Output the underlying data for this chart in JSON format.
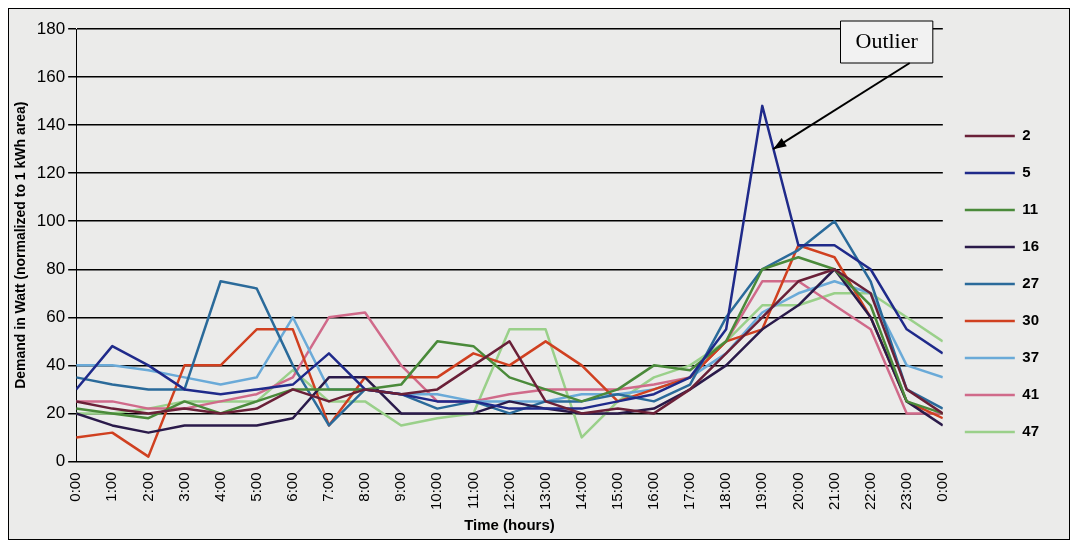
{
  "chart_data": {
    "type": "line",
    "xlabel": "Time (hours)",
    "ylabel": "Demand in Watt (normalized to 1 kWh area)",
    "xlim": [
      0,
      24
    ],
    "xticks": [
      {
        "value": 0,
        "label": "0:00"
      },
      {
        "value": 1,
        "label": "1:00"
      },
      {
        "value": 2,
        "label": "2:00"
      },
      {
        "value": 3,
        "label": "3:00"
      },
      {
        "value": 4,
        "label": "4:00"
      },
      {
        "value": 5,
        "label": "5:00"
      },
      {
        "value": 6,
        "label": "6:00"
      },
      {
        "value": 7,
        "label": "7:00"
      },
      {
        "value": 8,
        "label": "8:00"
      },
      {
        "value": 9,
        "label": "9:00"
      },
      {
        "value": 10,
        "label": "10:00"
      },
      {
        "value": 11,
        "label": "11:00"
      },
      {
        "value": 12,
        "label": "12:00"
      },
      {
        "value": 13,
        "label": "13:00"
      },
      {
        "value": 14,
        "label": "14:00"
      },
      {
        "value": 15,
        "label": "15:00"
      },
      {
        "value": 16,
        "label": "16:00"
      },
      {
        "value": 17,
        "label": "17:00"
      },
      {
        "value": 18,
        "label": "18:00"
      },
      {
        "value": 19,
        "label": "19:00"
      },
      {
        "value": 20,
        "label": "20:00"
      },
      {
        "value": 21,
        "label": "21:00"
      },
      {
        "value": 22,
        "label": "22:00"
      },
      {
        "value": 23,
        "label": "23:00"
      },
      {
        "value": 24,
        "label": "0:00"
      }
    ],
    "ylim": [
      0,
      180
    ],
    "yticks": [
      0,
      20,
      40,
      60,
      80,
      100,
      120,
      140,
      160,
      180
    ],
    "grid": "y",
    "legend": "right",
    "marker": "none",
    "line_style": "solid",
    "x": [
      0,
      1,
      2,
      3,
      4,
      5,
      6,
      7,
      8,
      9,
      10,
      11,
      12,
      13,
      14,
      15,
      16,
      17,
      18,
      19,
      20,
      21,
      22,
      23,
      24
    ],
    "series": [
      {
        "name": "2",
        "color": "#6a2038",
        "values": [
          25,
          22,
          20,
          22,
          20,
          22,
          30,
          25,
          30,
          28,
          30,
          40,
          50,
          25,
          20,
          22,
          20,
          30,
          45,
          60,
          75,
          80,
          70,
          30,
          20
        ]
      },
      {
        "name": "5",
        "color": "#1f2a8a",
        "values": [
          30,
          48,
          40,
          30,
          28,
          30,
          32,
          45,
          30,
          28,
          25,
          25,
          22,
          22,
          22,
          25,
          28,
          35,
          55,
          148,
          90,
          90,
          80,
          55,
          45
        ]
      },
      {
        "name": "11",
        "color": "#4a8a3a",
        "values": [
          22,
          20,
          18,
          25,
          20,
          25,
          30,
          30,
          30,
          32,
          50,
          48,
          35,
          30,
          25,
          30,
          40,
          38,
          50,
          80,
          85,
          80,
          65,
          25,
          20
        ]
      },
      {
        "name": "16",
        "color": "#2a1a4a",
        "values": [
          20,
          15,
          12,
          15,
          15,
          15,
          18,
          35,
          35,
          20,
          20,
          20,
          25,
          22,
          20,
          20,
          22,
          30,
          40,
          55,
          65,
          80,
          60,
          25,
          15
        ]
      },
      {
        "name": "27",
        "color": "#2a6a9a",
        "values": [
          35,
          32,
          30,
          30,
          75,
          72,
          40,
          15,
          30,
          28,
          22,
          25,
          20,
          25,
          25,
          28,
          25,
          32,
          60,
          80,
          88,
          100,
          75,
          30,
          22
        ]
      },
      {
        "name": "30",
        "color": "#d04020",
        "values": [
          10,
          12,
          2,
          40,
          40,
          55,
          55,
          15,
          35,
          35,
          35,
          45,
          40,
          50,
          40,
          25,
          30,
          35,
          50,
          55,
          90,
          85,
          60,
          25,
          18
        ]
      },
      {
        "name": "37",
        "color": "#6aaad8",
        "values": [
          40,
          40,
          38,
          35,
          32,
          35,
          60,
          30,
          30,
          28,
          28,
          25,
          25,
          25,
          28,
          28,
          30,
          35,
          45,
          62,
          70,
          75,
          70,
          40,
          35
        ]
      },
      {
        "name": "41",
        "color": "#d06a8a",
        "values": [
          25,
          25,
          22,
          22,
          25,
          28,
          35,
          60,
          62,
          40,
          25,
          25,
          28,
          30,
          30,
          30,
          32,
          35,
          50,
          75,
          75,
          65,
          55,
          20,
          20
        ]
      },
      {
        "name": "47",
        "color": "#9ad08a",
        "values": [
          20,
          20,
          22,
          25,
          25,
          25,
          38,
          25,
          25,
          15,
          18,
          20,
          55,
          55,
          10,
          25,
          35,
          40,
          50,
          65,
          65,
          70,
          70,
          60,
          50
        ]
      }
    ],
    "annotations": [
      {
        "text": "Outlier",
        "x": 19.3,
        "y": 130
      }
    ]
  }
}
